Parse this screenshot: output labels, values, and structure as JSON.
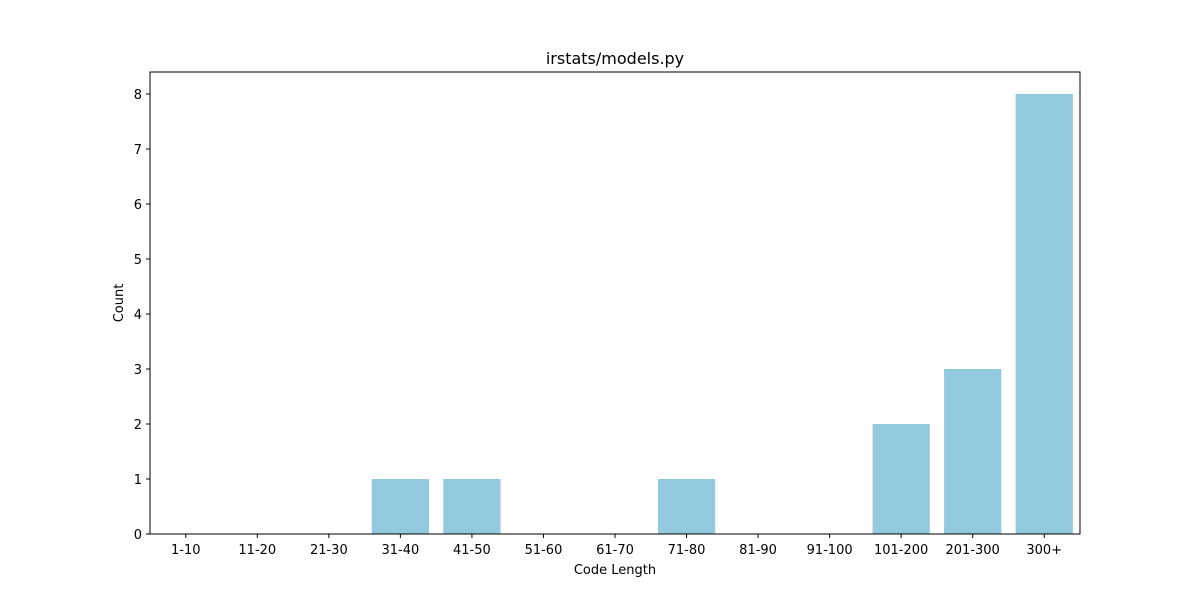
{
  "chart_data": {
    "type": "bar",
    "title": "irstats/models.py",
    "xlabel": "Code Length",
    "ylabel": "Count",
    "categories": [
      "1-10",
      "11-20",
      "21-30",
      "31-40",
      "41-50",
      "51-60",
      "61-70",
      "71-80",
      "81-90",
      "91-100",
      "101-200",
      "201-300",
      "300+"
    ],
    "values": [
      0,
      0,
      0,
      1,
      1,
      0,
      0,
      1,
      0,
      0,
      2,
      3,
      8
    ],
    "ylim": [
      0,
      8.4
    ],
    "yticks": [
      "0",
      "1",
      "2",
      "3",
      "4",
      "5",
      "6",
      "7",
      "8"
    ],
    "bar_color": "#92c9de",
    "grid": false,
    "legend": "none"
  }
}
